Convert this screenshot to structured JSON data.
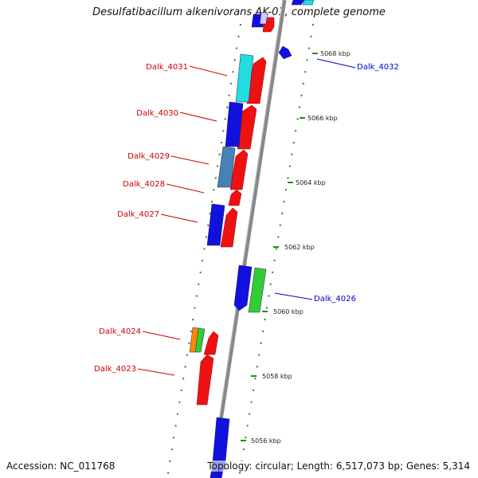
{
  "title": "Desulfatibacillum alkenivorans AK-01, complete genome",
  "accession": "Accession: NC_011768",
  "topology": "Topology: circular; Length: 6,517,073 bp; Genes: 5,314",
  "colors": {
    "gene_red": "#ee1111",
    "gene_blue": "#1111dd",
    "gene_cyan": "#22dddd",
    "gene_steel": "#4682b4",
    "gene_green": "#33cc33",
    "gene_orange": "#ff8800",
    "label_red": "#cc0000",
    "label_blue": "#0000cc",
    "dot_green": "#228822",
    "backbone": "#888888"
  },
  "scale_ticks": [
    {
      "label": "5068 kbp"
    },
    {
      "label": "5066 kbp"
    },
    {
      "label": "5064 kbp"
    },
    {
      "label": "5062 kbp"
    },
    {
      "label": "5060 kbp"
    },
    {
      "label": "5058 kbp"
    },
    {
      "label": "5056 kbp"
    }
  ],
  "gene_labels": [
    {
      "name": "Dalk_4031",
      "color": "red"
    },
    {
      "name": "Dalk_4030",
      "color": "red"
    },
    {
      "name": "Dalk_4029",
      "color": "red"
    },
    {
      "name": "Dalk_4028",
      "color": "red"
    },
    {
      "name": "Dalk_4027",
      "color": "red"
    },
    {
      "name": "Dalk_4024",
      "color": "red"
    },
    {
      "name": "Dalk_4023",
      "color": "red"
    },
    {
      "name": "Dalk_4032",
      "color": "blue"
    },
    {
      "name": "Dalk_4026",
      "color": "blue"
    }
  ]
}
